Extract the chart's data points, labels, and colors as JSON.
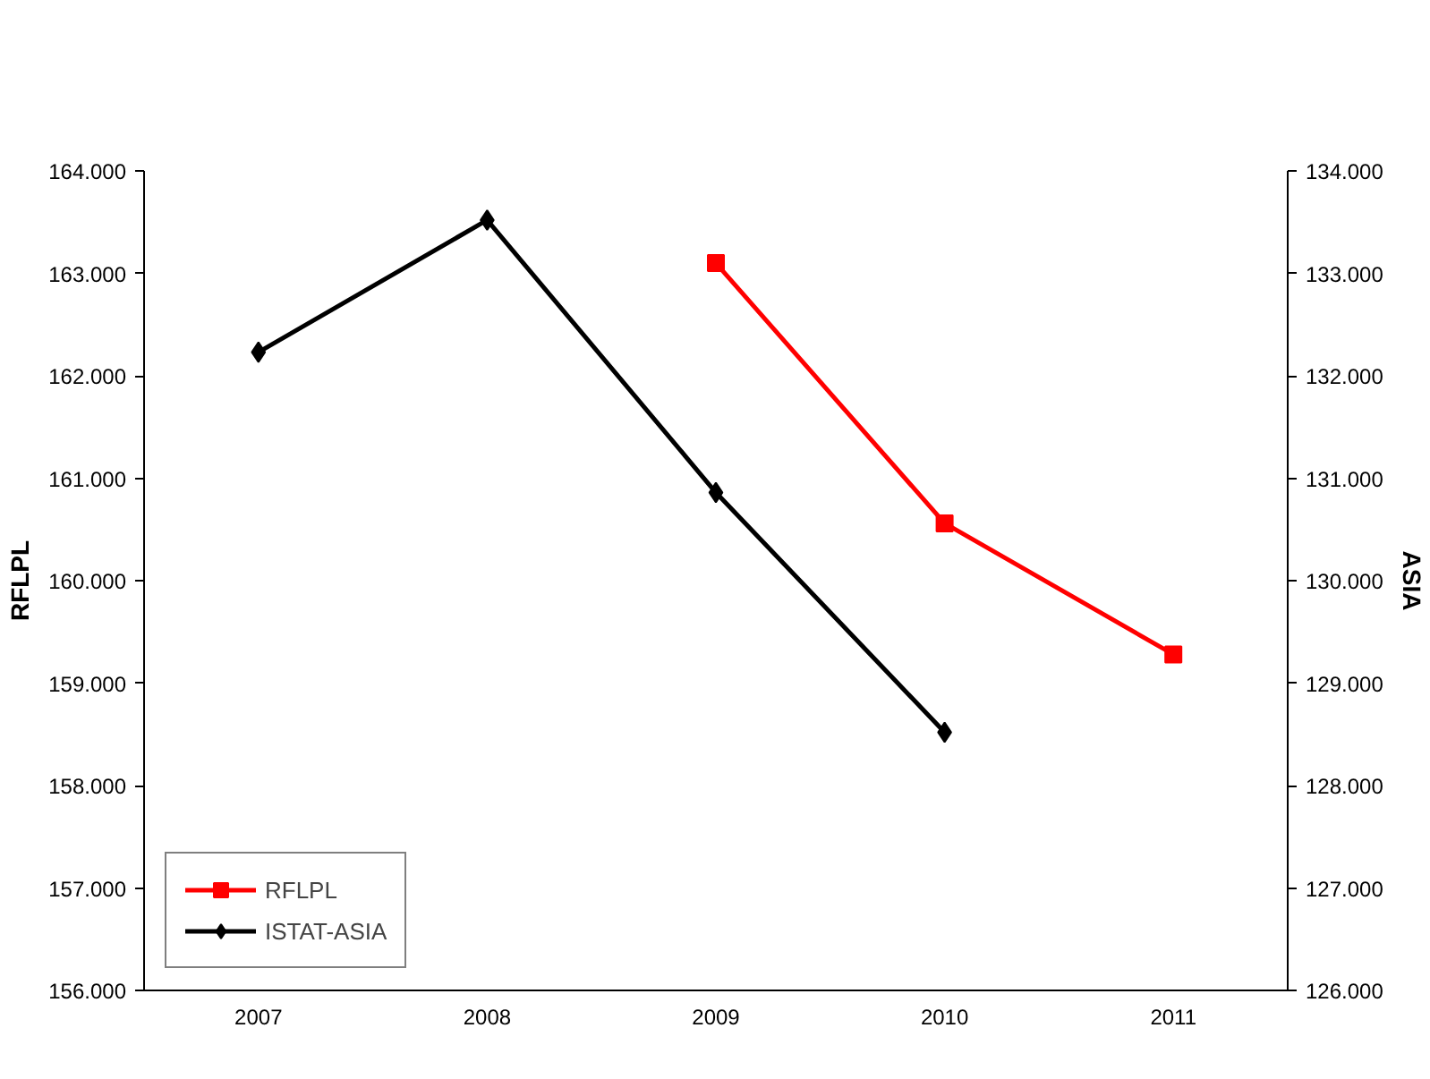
{
  "chart_data": {
    "type": "line",
    "ylabel": "RFLPL",
    "y2label": "ASIA",
    "categories": [
      "2007",
      "2008",
      "2009",
      "2010",
      "2011"
    ],
    "series": [
      {
        "name": "RFLPL",
        "color": "#ff0000",
        "marker": "square",
        "values": [
          null,
          null,
          163.1,
          160.56,
          159.28
        ]
      },
      {
        "name": "ISTAT-ASIA",
        "color": "#000000",
        "marker": "diamond",
        "axis": "y2",
        "values": [
          132.23,
          133.52,
          130.86,
          128.52,
          null
        ]
      }
    ],
    "ylim": [
      156,
      164
    ],
    "yticks": [
      {
        "value": 156,
        "label": "156.000"
      },
      {
        "value": 157,
        "label": "157.000"
      },
      {
        "value": 158,
        "label": "158.000"
      },
      {
        "value": 159,
        "label": "159.000"
      },
      {
        "value": 160,
        "label": "160.000"
      },
      {
        "value": 161,
        "label": "161.000"
      },
      {
        "value": 162,
        "label": "162.000"
      },
      {
        "value": 163,
        "label": "163.000"
      },
      {
        "value": 164,
        "label": "164.000"
      }
    ],
    "y2lim": [
      126,
      134
    ],
    "y2ticks": [
      {
        "value": 126,
        "label": "126.000"
      },
      {
        "value": 127,
        "label": "127.000"
      },
      {
        "value": 128,
        "label": "128.000"
      },
      {
        "value": 129,
        "label": "129.000"
      },
      {
        "value": 130,
        "label": "130.000"
      },
      {
        "value": 131,
        "label": "131.000"
      },
      {
        "value": 132,
        "label": "132.000"
      },
      {
        "value": 133,
        "label": "133.000"
      },
      {
        "value": 134,
        "label": "134.000"
      }
    ],
    "legend": "bottom left",
    "grid": false
  }
}
